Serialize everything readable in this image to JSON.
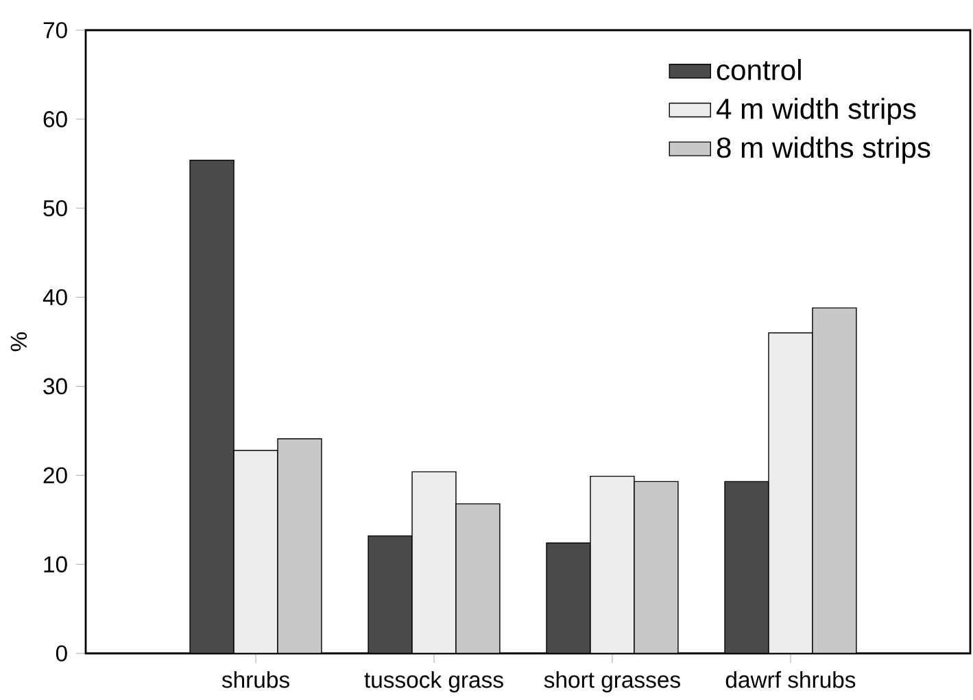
{
  "chart_data": {
    "type": "bar",
    "ylabel": "%",
    "categories": [
      "shrubs",
      "tussock grass",
      "short grasses",
      "dawrf shrubs"
    ],
    "series": [
      {
        "name": "control",
        "color": "#4a4a4a",
        "values": [
          55.4,
          13.2,
          12.4,
          19.3
        ]
      },
      {
        "name": "4 m width strips",
        "color": "#ececec",
        "values": [
          22.8,
          20.4,
          19.9,
          36.0
        ]
      },
      {
        "name": "8 m widths strips",
        "color": "#c8c8c8",
        "values": [
          24.1,
          16.8,
          19.3,
          38.8
        ]
      }
    ],
    "ylim": [
      0,
      70
    ],
    "yticks": [
      0,
      10,
      20,
      30,
      40,
      50,
      60,
      70
    ],
    "legend": "top right",
    "grid": false
  }
}
